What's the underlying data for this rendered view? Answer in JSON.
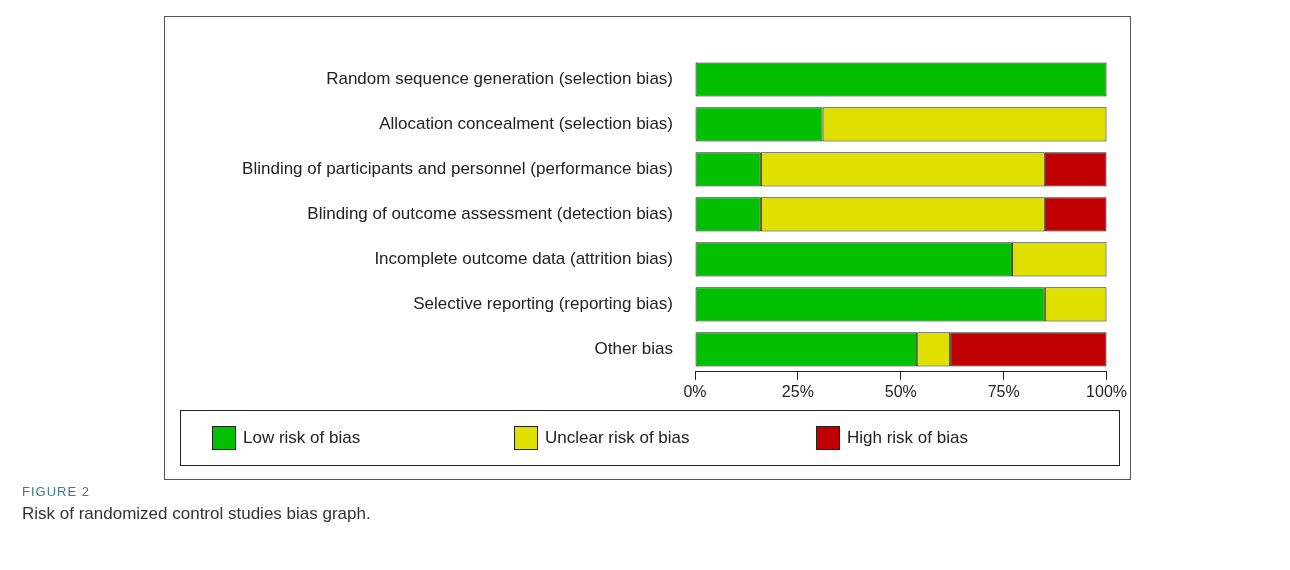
{
  "chart_data": {
    "type": "bar",
    "orientation": "horizontal",
    "stacked": true,
    "categories": [
      "Random sequence generation (selection bias)",
      "Allocation concealment (selection bias)",
      "Blinding of participants and personnel (performance bias)",
      "Blinding of outcome assessment (detection bias)",
      "Incomplete outcome data (attrition bias)",
      "Selective reporting (reporting bias)",
      "Other bias"
    ],
    "series": [
      {
        "name": "Low risk of bias",
        "color": "#00c000",
        "values": [
          100,
          31,
          16,
          16,
          77,
          85,
          54
        ]
      },
      {
        "name": "Unclear risk of bias",
        "color": "#e0e000",
        "values": [
          0,
          69,
          69,
          69,
          23,
          15,
          8
        ]
      },
      {
        "name": "High risk of bias",
        "color": "#c00000",
        "values": [
          0,
          0,
          15,
          15,
          0,
          0,
          38
        ]
      }
    ],
    "xlim": [
      0,
      100
    ],
    "xticks": [
      {
        "value": 0,
        "label": "0%"
      },
      {
        "value": 25,
        "label": "25%"
      },
      {
        "value": 50,
        "label": "50%"
      },
      {
        "value": 75,
        "label": "75%"
      },
      {
        "value": 100,
        "label": "100%"
      }
    ],
    "grid": false,
    "legend": "bottom",
    "annotations": [
      "FIGURE 2",
      "Risk of randomized control studies bias graph."
    ]
  }
}
